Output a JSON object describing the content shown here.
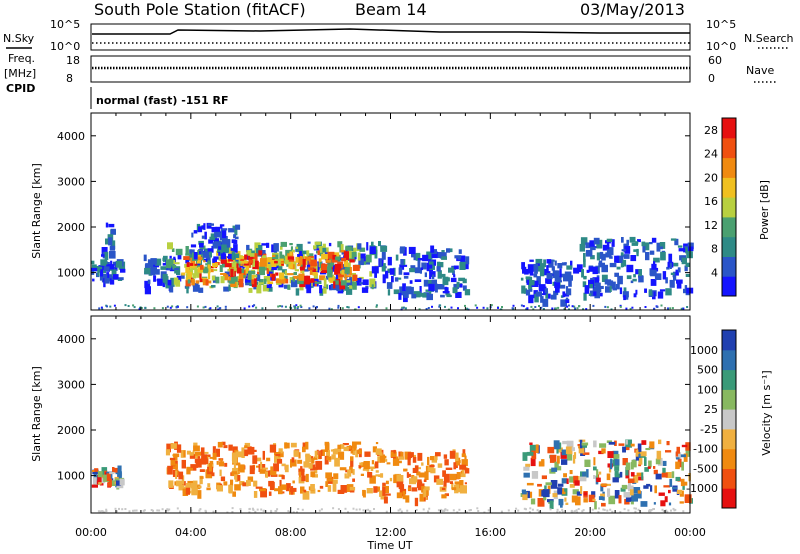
{
  "header": {
    "station_title": "South Pole Station (fitACF)",
    "beam": "Beam 14",
    "date": "03/May/2013"
  },
  "summary_panels": {
    "nsky": {
      "left_label": "N.Sky",
      "right_label": "N.Search",
      "left_ticks": [
        "10^5",
        "10^0"
      ],
      "right_ticks": [
        "10^5",
        "10^0"
      ]
    },
    "freq": {
      "left_label_1": "Freq.",
      "left_label_2": "[MHz]",
      "right_label": "Nave",
      "left_ticks": [
        "18",
        "8"
      ],
      "right_ticks": [
        "60",
        "0"
      ]
    },
    "cpid": {
      "label": "CPID",
      "text": "normal (fast) -151 RF"
    }
  },
  "chart_data": [
    {
      "type": "heatmap",
      "name": "power",
      "ylabel": "Slant Range [km]",
      "xlabel": "",
      "x_ticks": [
        "00:00",
        "04:00",
        "08:00",
        "12:00",
        "16:00",
        "20:00",
        "00:00"
      ],
      "x_range_hours": [
        0,
        24
      ],
      "y_ticks": [
        1000,
        2000,
        3000,
        4000
      ],
      "ylim": [
        180,
        4500
      ],
      "colorbar": {
        "label": "Power [dB]",
        "ticks": [
          4,
          8,
          12,
          16,
          20,
          24,
          28
        ],
        "range": [
          0,
          30
        ],
        "colors": [
          "#1414ff",
          "#2a55c8",
          "#2e8a86",
          "#4aa070",
          "#b8d040",
          "#f0c020",
          "#f08a10",
          "#f05010",
          "#e61010"
        ]
      },
      "echo_regions": [
        {
          "t0": 0.0,
          "t1": 1.2,
          "r0": 800,
          "r1": 1300,
          "level": "low"
        },
        {
          "t0": 0.4,
          "t1": 0.8,
          "r0": 1400,
          "r1": 2100,
          "level": "low"
        },
        {
          "t0": 2.1,
          "t1": 3.2,
          "r0": 700,
          "r1": 1400,
          "level": "low"
        },
        {
          "t0": 3.0,
          "t1": 11.5,
          "r0": 650,
          "r1": 1700,
          "level": "mid"
        },
        {
          "t0": 3.6,
          "t1": 10.5,
          "r0": 800,
          "r1": 1500,
          "level": "high"
        },
        {
          "t0": 4.0,
          "t1": 5.8,
          "r0": 1400,
          "r1": 2100,
          "level": "low"
        },
        {
          "t0": 11.5,
          "t1": 15.0,
          "r0": 500,
          "r1": 1600,
          "level": "low"
        },
        {
          "t0": 17.2,
          "t1": 19.5,
          "r0": 400,
          "r1": 1300,
          "level": "low"
        },
        {
          "t0": 19.5,
          "t1": 24.0,
          "r0": 500,
          "r1": 1800,
          "level": "low"
        }
      ]
    },
    {
      "type": "heatmap",
      "name": "velocity",
      "ylabel": "Slant Range [km]",
      "xlabel": "Time UT",
      "x_ticks": [
        "00:00",
        "04:00",
        "08:00",
        "12:00",
        "16:00",
        "20:00",
        "00:00"
      ],
      "x_range_hours": [
        0,
        24
      ],
      "y_ticks": [
        1000,
        2000,
        3000,
        4000
      ],
      "ylim": [
        180,
        4500
      ],
      "colorbar": {
        "label": "Velocity [m s⁻¹]",
        "ticks": [
          1000,
          500,
          100,
          25,
          -25,
          -100,
          -500,
          -1000
        ],
        "range": [
          -1200,
          1200
        ],
        "colors": [
          "#e61010",
          "#f05010",
          "#f08a10",
          "#f0b040",
          "#c8c8c8",
          "#88b860",
          "#3a9a78",
          "#2e70b0",
          "#2040b0"
        ]
      },
      "echo_regions": [
        {
          "t0": 0.0,
          "t1": 1.2,
          "r0": 800,
          "r1": 1300,
          "level": "mixed"
        },
        {
          "t0": 3.0,
          "t1": 11.5,
          "r0": 650,
          "r1": 1750,
          "level": "neg"
        },
        {
          "t0": 11.5,
          "t1": 15.0,
          "r0": 500,
          "r1": 1600,
          "level": "neg"
        },
        {
          "t0": 17.2,
          "t1": 24.0,
          "r0": 400,
          "r1": 1800,
          "level": "mixed"
        }
      ]
    }
  ]
}
